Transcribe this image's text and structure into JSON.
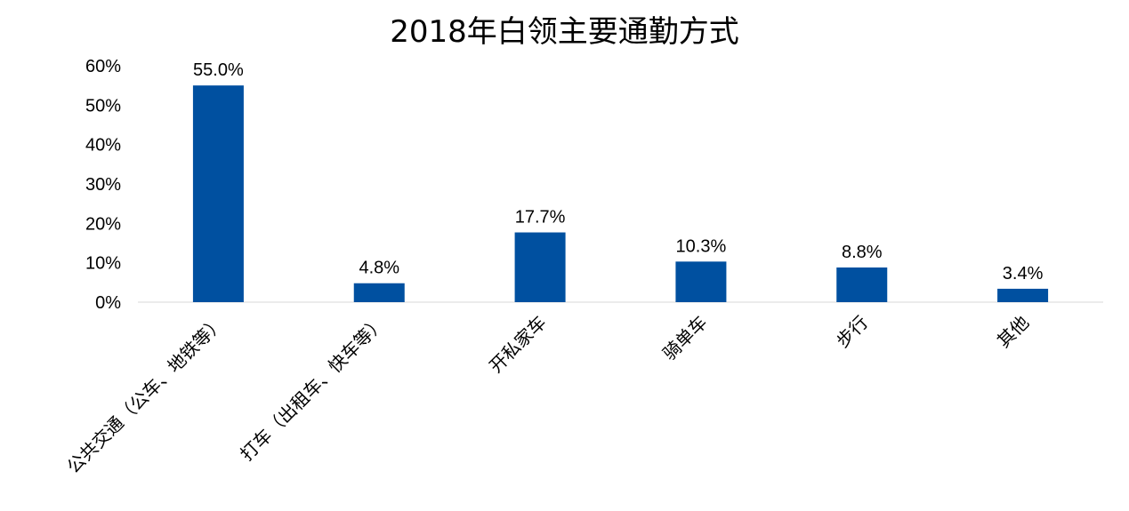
{
  "chart_data": {
    "type": "bar",
    "title": "2018年白领主要通勤方式",
    "categories": [
      "公共交通（公车、地铁等）",
      "打车（出租车、快车等）",
      "开私家车",
      "骑单车",
      "步行",
      "其他"
    ],
    "values": [
      55.0,
      4.8,
      17.7,
      10.3,
      8.8,
      3.4
    ],
    "data_labels": [
      "55.0%",
      "4.8%",
      "17.7%",
      "10.3%",
      "8.8%",
      "3.4%"
    ],
    "y_ticks": [
      "0%",
      "10%",
      "20%",
      "30%",
      "40%",
      "50%",
      "60%"
    ],
    "ylim": [
      0,
      60
    ],
    "grid": false,
    "legend": "none",
    "bar_color": "#0050A0",
    "axis_color": "#D9D9D9"
  }
}
